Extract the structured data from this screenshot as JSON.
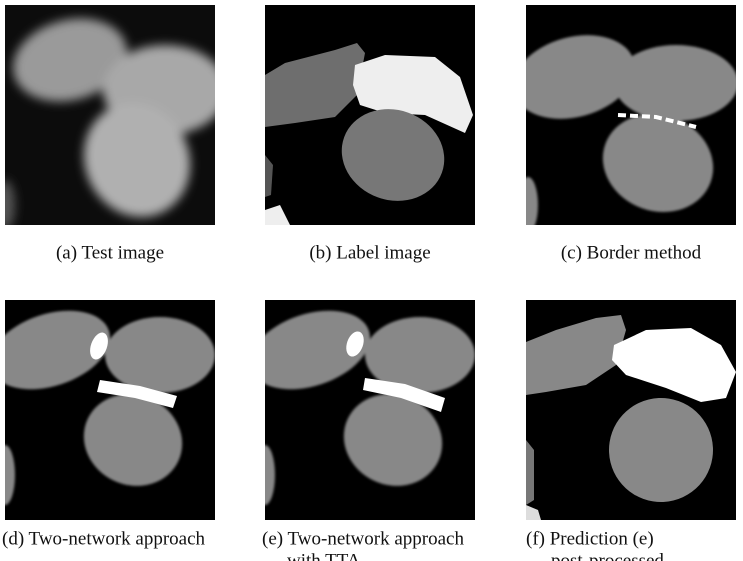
{
  "panels": [
    {
      "caption": [
        "(a) Test image"
      ]
    },
    {
      "caption": [
        "(b) Label image"
      ]
    },
    {
      "caption": [
        "(c) Border method"
      ]
    },
    {
      "caption": [
        "(d) Two-network approach"
      ]
    },
    {
      "caption": [
        "(e) Two-network approach",
        "with TTA"
      ]
    },
    {
      "caption": [
        "(f) Prediction (e)",
        "post-processed"
      ]
    }
  ]
}
